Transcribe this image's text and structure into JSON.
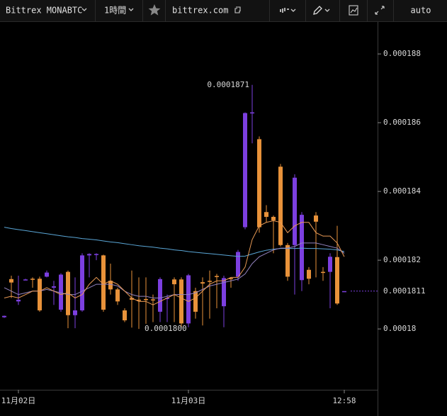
{
  "toolbar": {
    "symbol": "Bittrex MONABTC",
    "interval": "1時間",
    "site": "bittrex.com",
    "scale_mode": "auto"
  },
  "chart_data": {
    "type": "candlestick",
    "categories": [
      null,
      null,
      "11月02日",
      null,
      null,
      null,
      null,
      null,
      null,
      null,
      null,
      null,
      null,
      null,
      null,
      null,
      null,
      null,
      null,
      null,
      null,
      null,
      null,
      null,
      null,
      null,
      "11月03日",
      null,
      null,
      null,
      null,
      null,
      null,
      null,
      null,
      null,
      null,
      null,
      null,
      null,
      null,
      null,
      null,
      null,
      null,
      null,
      null,
      null,
      "12:58"
    ],
    "open": [
      0.00018034,
      0.00018145,
      0.0001808,
      0.00018143,
      0.00018146,
      0.00018146,
      0.00018152,
      0.0001812,
      0.00018056,
      0.00018166,
      0.0001804,
      0.00018054,
      0.00018214,
      0.00018216,
      0.00018214,
      0.0001814,
      0.00018115,
      0.00018054,
      0.0001809,
      0.00018085,
      0.00018087,
      0.00018086,
      0.0001805,
      0.00018088,
      0.00018144,
      0.00018144,
      0.00018016,
      0.0001811,
      0.00018136,
      0.0001814,
      0.00018154,
      0.00018066,
      0.00018148,
      0.00018152,
      0.00018296,
      0.00018628,
      0.00018552,
      0.0001834,
      0.00018326,
      0.00018472,
      0.00018244,
      0.00018244,
      0.00018142,
      0.00018172,
      0.0001833,
      0.00018166,
      0.00018166,
      0.00018209,
      0.0001811
    ],
    "high": [
      0.00018039,
      0.00018155,
      0.00018155,
      0.00018146,
      0.0001815,
      0.00018152,
      0.0001817,
      0.0001814,
      0.00018162,
      0.0001817,
      0.0001815,
      0.0001822,
      0.0001822,
      0.0001822,
      0.00018216,
      0.0001819,
      0.0001812,
      0.0001806,
      0.0001817,
      0.0001815,
      0.0001815,
      0.000181,
      0.0001815,
      0.000181,
      0.0001815,
      0.0001815,
      0.0001816,
      0.0001812,
      0.0001815,
      0.0001817,
      0.0001816,
      0.00018155,
      0.0001815,
      0.0001823,
      0.0001863,
      0.0001871,
      0.0001856,
      0.0001836,
      0.0001833,
      0.0001848,
      0.0001825,
      0.0001845,
      0.0001834,
      0.0001818,
      0.0001834,
      0.0001818,
      0.0001822,
      0.000183,
      0.0001811
    ],
    "low": [
      0.00018032,
      0.0001809,
      0.0001807,
      0.00018142,
      0.0001812,
      0.0001805,
      0.0001815,
      0.0001807,
      0.0001805,
      0.00018002,
      0.00018002,
      0.0001805,
      0.0001815,
      0.000182,
      0.0001805,
      0.000181,
      0.0001807,
      0.0001802,
      0.00018004,
      0.00018,
      0.00018015,
      0.0001802,
      0.0001802,
      0.0001802,
      0.0001802,
      0.00018005,
      0.00018005,
      0.0001803,
      0.0001801,
      0.0001803,
      0.0001806,
      0.00018005,
      0.0001812,
      0.0001814,
      0.0001829,
      0.0001854,
      0.0001828,
      0.0001831,
      0.0001822,
      0.0001824,
      0.0001814,
      0.000181,
      0.0001811,
      0.0001813,
      0.0001815,
      0.0001814,
      0.0001806,
      0.0001807,
      0.0001811
    ],
    "close": [
      0.00018038,
      0.00018135,
      0.00018085,
      0.00018144,
      0.00018144,
      0.00018054,
      0.00018164,
      0.00018124,
      0.00018158,
      0.0001804,
      0.00018054,
      0.00018214,
      0.00018218,
      0.00018218,
      0.00018056,
      0.00018115,
      0.0001808,
      0.00018025,
      0.00018085,
      0.00018083,
      0.00018086,
      0.00018084,
      0.00018145,
      0.0001809,
      0.0001813,
      0.00018016,
      0.00018156,
      0.0001805,
      0.00018132,
      0.00018138,
      0.00018152,
      0.00018148,
      0.00018145,
      0.00018224,
      0.00018628,
      0.0001863,
      0.00018296,
      0.00018326,
      0.00018316,
      0.00018244,
      0.00018152,
      0.0001844,
      0.00018332,
      0.00018146,
      0.00018312,
      0.00018164,
      0.0001821,
      0.00018074,
      0.0001811
    ],
    "up_color": "#7c3fe0",
    "down_color": "#e8923a",
    "series": [
      {
        "color": "#5aa6d6",
        "values": [
          0.00018296,
          0.00018292,
          0.00018289,
          0.00018286,
          0.00018283,
          0.0001828,
          0.00018277,
          0.00018274,
          0.00018271,
          0.00018268,
          0.00018266,
          0.00018263,
          0.00018261,
          0.00018259,
          0.00018256,
          0.00018253,
          0.00018251,
          0.00018248,
          0.00018245,
          0.00018242,
          0.0001824,
          0.00018238,
          0.00018235,
          0.00018233,
          0.0001823,
          0.00018228,
          0.00018225,
          0.00018223,
          0.00018221,
          0.00018219,
          0.00018217,
          0.00018215,
          0.00018213,
          0.00018211,
          0.00018212,
          0.00018218,
          0.00018224,
          0.00018229,
          0.00018232,
          0.00018234,
          0.00018234,
          0.00018234,
          0.00018235,
          0.00018234,
          0.00018234,
          0.00018233,
          0.00018232,
          0.0001823,
          0.00018225
        ]
      },
      {
        "color": "#9484c0",
        "values": [
          0.0001812,
          0.0001811,
          0.000181,
          0.00018105,
          0.0001811,
          0.0001811,
          0.00018115,
          0.0001811,
          0.00018105,
          0.000181,
          0.000181,
          0.0001811,
          0.0001812,
          0.0001813,
          0.0001813,
          0.0001813,
          0.00018125,
          0.0001811,
          0.000181,
          0.00018095,
          0.00018095,
          0.0001809,
          0.0001809,
          0.00018095,
          0.000181,
          0.000181,
          0.000181,
          0.00018105,
          0.00018115,
          0.00018125,
          0.0001813,
          0.00018135,
          0.0001814,
          0.00018145,
          0.0001816,
          0.0001819,
          0.0001821,
          0.0001822,
          0.0001823,
          0.00018235,
          0.00018235,
          0.0001824,
          0.0001825,
          0.0001825,
          0.0001825,
          0.00018245,
          0.0001824,
          0.00018235,
          0.0001822
        ]
      },
      {
        "color": "#e99a55",
        "values": [
          0.0001809,
          0.00018095,
          0.0001809,
          0.000181,
          0.0001811,
          0.0001811,
          0.0001812,
          0.0001811,
          0.000181,
          0.00018105,
          0.0001809,
          0.000181,
          0.0001813,
          0.0001815,
          0.0001813,
          0.0001814,
          0.0001813,
          0.0001811,
          0.0001809,
          0.0001808,
          0.0001808,
          0.0001807,
          0.0001808,
          0.0001809,
          0.000181,
          0.0001809,
          0.0001808,
          0.0001809,
          0.0001811,
          0.0001813,
          0.0001814,
          0.0001814,
          0.0001815,
          0.0001815,
          0.0001818,
          0.0001826,
          0.000183,
          0.0001831,
          0.00018315,
          0.0001831,
          0.0001828,
          0.000183,
          0.0001831,
          0.0001831,
          0.0001828,
          0.0001827,
          0.0001827,
          0.0001825,
          0.0001821
        ]
      }
    ],
    "ylim": [
      0.00017823,
      0.00018893
    ],
    "yticks": [
      0.000188,
      0.000186,
      0.000184,
      0.000182,
      0.00018
    ],
    "high_label": 0.0001871,
    "low_label": {
      "value": 0.00018,
      "label": "0.0001800"
    },
    "last_price": 0.0001811
  }
}
